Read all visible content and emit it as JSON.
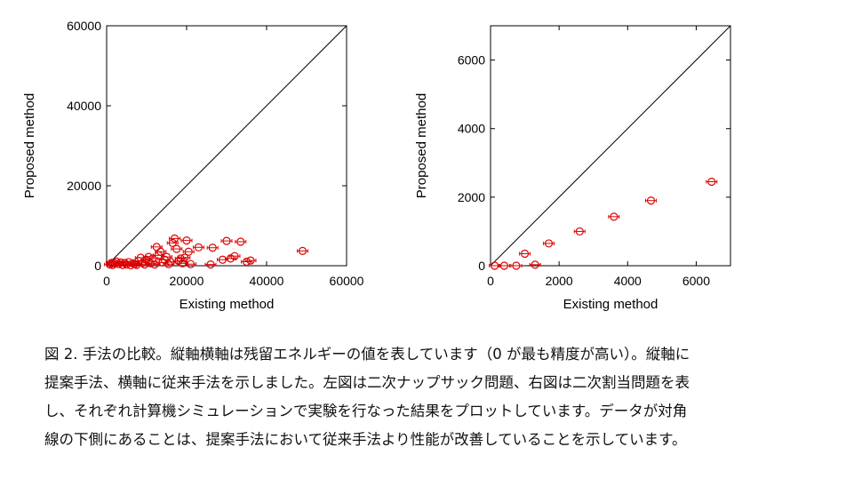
{
  "chart_data": [
    {
      "type": "scatter",
      "xlabel": "Existing method",
      "ylabel": "Proposed method",
      "xlim": [
        0,
        60000
      ],
      "ylim": [
        0,
        60000
      ],
      "xticks": [
        0,
        20000,
        40000,
        60000
      ],
      "yticks": [
        0,
        20000,
        40000,
        60000
      ],
      "xtick_labels": [
        "0",
        "20000",
        "40000",
        "60000"
      ],
      "ytick_labels": [
        "0",
        "20000",
        "40000",
        "60000"
      ],
      "diagonal": true,
      "grid": false,
      "marker_color": "#dd0000",
      "points": [
        [
          800,
          300
        ],
        [
          1200,
          700
        ],
        [
          1500,
          200
        ],
        [
          2000,
          600
        ],
        [
          2500,
          1000
        ],
        [
          3000,
          400
        ],
        [
          3500,
          800
        ],
        [
          4000,
          200
        ],
        [
          4500,
          700
        ],
        [
          5000,
          300
        ],
        [
          5500,
          900
        ],
        [
          6000,
          100
        ],
        [
          6500,
          600
        ],
        [
          7000,
          400
        ],
        [
          7500,
          200
        ],
        [
          8000,
          1200
        ],
        [
          8500,
          2000
        ],
        [
          9000,
          700
        ],
        [
          9500,
          300
        ],
        [
          10000,
          1500
        ],
        [
          10500,
          2200
        ],
        [
          11000,
          600
        ],
        [
          11500,
          1800
        ],
        [
          12000,
          300
        ],
        [
          12500,
          4700
        ],
        [
          13000,
          2600
        ],
        [
          13500,
          3500
        ],
        [
          14000,
          800
        ],
        [
          14500,
          1500
        ],
        [
          15000,
          2200
        ],
        [
          15500,
          400
        ],
        [
          16000,
          900
        ],
        [
          16500,
          5700
        ],
        [
          17000,
          6800
        ],
        [
          17500,
          4200
        ],
        [
          18000,
          1200
        ],
        [
          18500,
          1800
        ],
        [
          19000,
          600
        ],
        [
          19500,
          2000
        ],
        [
          20000,
          6300
        ],
        [
          20500,
          3500
        ],
        [
          21000,
          400
        ],
        [
          23000,
          4600
        ],
        [
          26000,
          300
        ],
        [
          26500,
          4500
        ],
        [
          29000,
          1500
        ],
        [
          30000,
          6200
        ],
        [
          31000,
          1800
        ],
        [
          32000,
          2400
        ],
        [
          33500,
          6000
        ],
        [
          35000,
          1000
        ],
        [
          36000,
          1300
        ],
        [
          49000,
          3700
        ]
      ]
    },
    {
      "type": "scatter",
      "xlabel": "Existing method",
      "ylabel": "Proposed method",
      "xlim": [
        0,
        7000
      ],
      "ylim": [
        0,
        7000
      ],
      "xticks": [
        0,
        2000,
        4000,
        6000
      ],
      "yticks": [
        0,
        2000,
        4000,
        6000
      ],
      "xtick_labels": [
        "0",
        "2000",
        "4000",
        "6000"
      ],
      "ytick_labels": [
        "0",
        "2000",
        "4000",
        "6000"
      ],
      "diagonal": true,
      "grid": false,
      "marker_color": "#dd0000",
      "points": [
        [
          120,
          0
        ],
        [
          400,
          0
        ],
        [
          750,
          0
        ],
        [
          1000,
          350
        ],
        [
          1300,
          30
        ],
        [
          1700,
          650
        ],
        [
          2600,
          1000
        ],
        [
          3600,
          1430
        ],
        [
          4680,
          1900
        ],
        [
          6450,
          2450
        ]
      ]
    }
  ],
  "caption": {
    "lines": [
      "図 2. 手法の比較。縦軸横軸は残留エネルギーの値を表しています（0 が最も精度が高い）。縦軸に",
      "提案手法、横軸に従来手法を示しました。左図は二次ナップサック問題、右図は二次割当問題を表",
      "し、それぞれ計算機シミュレーションで実験を行なった結果をプロットしています。データが対角",
      "線の下側にあることは、提案手法において従来手法より性能が改善していることを示しています。"
    ]
  }
}
